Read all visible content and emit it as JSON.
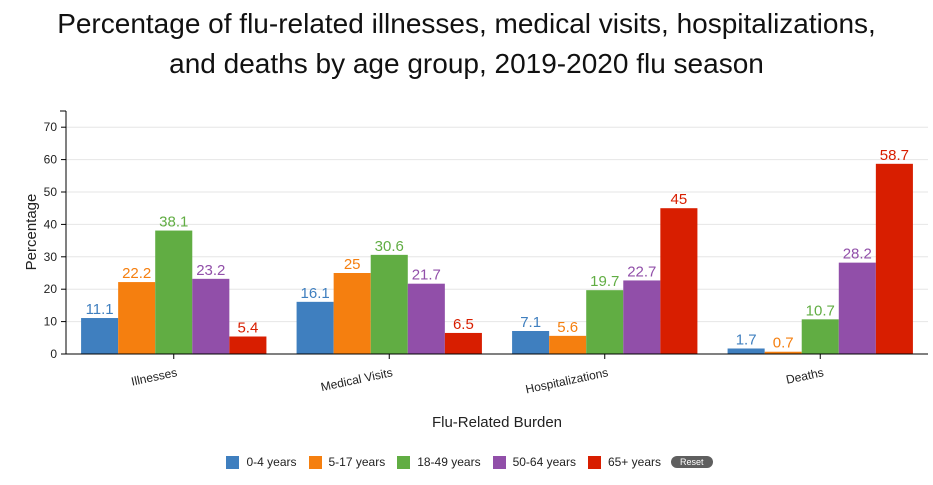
{
  "chart_data": {
    "type": "bar",
    "title_lines": [
      "Percentage of flu-related illnesses, medical visits, hospitalizations,",
      "and deaths by age group, 2019-2020 flu season"
    ],
    "xlabel": "Flu-Related Burden",
    "ylabel": "Percentage",
    "ylim": [
      0,
      75
    ],
    "yticks": [
      0,
      10,
      20,
      30,
      40,
      50,
      60,
      70
    ],
    "grid": true,
    "legend_position": "bottom",
    "categories": [
      "Illnesses",
      "Medical Visits",
      "Hospitalizations",
      "Deaths"
    ],
    "series": [
      {
        "name": "0-4 years",
        "color": "#3f7fbf",
        "values": [
          11.1,
          16.1,
          7.1,
          1.7
        ]
      },
      {
        "name": "5-17 years",
        "color": "#f57f0f",
        "values": [
          22.2,
          25,
          5.6,
          0.7
        ]
      },
      {
        "name": "18-49 years",
        "color": "#61ad43",
        "values": [
          38.1,
          30.6,
          19.7,
          10.7
        ]
      },
      {
        "name": "50-64 years",
        "color": "#914fa9",
        "values": [
          23.2,
          21.7,
          22.7,
          28.2
        ]
      },
      {
        "name": "65+ years",
        "color": "#d81e00",
        "values": [
          5.4,
          6.5,
          45,
          58.7
        ]
      }
    ]
  },
  "legend": {
    "reset_label": "Reset"
  }
}
